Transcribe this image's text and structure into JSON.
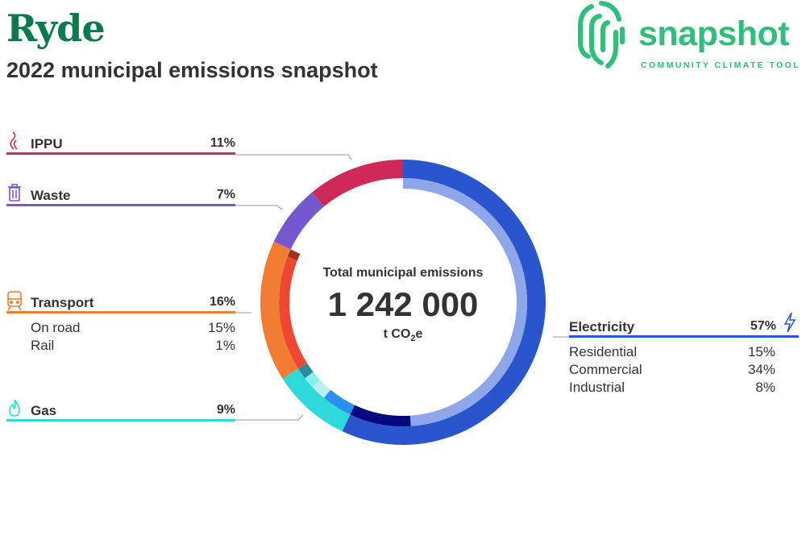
{
  "header": {
    "title": "Ryde",
    "subtitle": "2022 municipal emissions snapshot"
  },
  "logo": {
    "word": "snapshot",
    "tagline": "COMMUNITY CLIMATE TOOL",
    "color": "#2ec07a"
  },
  "center": {
    "label": "Total municipal emissions",
    "value": "1 242 000",
    "unit_prefix": "t CO",
    "unit_sub": "2",
    "unit_suffix": "e"
  },
  "categories": [
    {
      "name": "IPPU",
      "pct": "11%",
      "color": "#cf2a57",
      "icon": "smoke-icon"
    },
    {
      "name": "Waste",
      "pct": "7%",
      "color": "#7358d0",
      "icon": "trash-bin-icon"
    },
    {
      "name": "Transport",
      "pct": "16%",
      "color": "#f07d32",
      "icon": "train-icon",
      "subs": [
        {
          "label": "On road",
          "pct": "15%"
        },
        {
          "label": "Rail",
          "pct": "1%"
        }
      ]
    },
    {
      "name": "Gas",
      "pct": "9%",
      "color": "#2ed9d9",
      "icon": "flame-icon"
    },
    {
      "name": "Electricity",
      "pct": "57%",
      "color": "#2955cf",
      "icon": "lightning-icon",
      "subs": [
        {
          "label": "Residential",
          "pct": "15%"
        },
        {
          "label": "Commercial",
          "pct": "34%"
        },
        {
          "label": "Industrial",
          "pct": "8%"
        }
      ]
    }
  ],
  "chart_data": {
    "type": "pie",
    "total": 1242000,
    "series": [
      {
        "name": "Electricity",
        "value": 57,
        "color": "#2955cf",
        "subs": [
          {
            "name": "Residential",
            "value": 15,
            "color": "#8ea6ea"
          },
          {
            "name": "Commercial",
            "value": 34,
            "color": "#8ea6ea"
          },
          {
            "name": "Industrial",
            "value": 8,
            "color": "#05087a"
          }
        ]
      },
      {
        "name": "Gas",
        "value": 9,
        "color": "#2ed9d9",
        "subs": [
          {
            "name": "",
            "value": 4,
            "color": "#2a90f0"
          },
          {
            "name": "",
            "value": 2,
            "color": "#bfeeee"
          },
          {
            "name": "",
            "value": 1.5,
            "color": "#88f0f0"
          },
          {
            "name": "",
            "value": 1.5,
            "color": "#2a8a9a"
          }
        ]
      },
      {
        "name": "Transport",
        "value": 16,
        "color": "#f07d32",
        "subs": [
          {
            "name": "On road",
            "value": 15,
            "color": "#f04830"
          },
          {
            "name": "Rail",
            "value": 1,
            "color": "#a03020"
          }
        ]
      },
      {
        "name": "Waste",
        "value": 7,
        "color": "#7358d0"
      },
      {
        "name": "IPPU",
        "value": 11,
        "color": "#cf2a57"
      }
    ]
  }
}
